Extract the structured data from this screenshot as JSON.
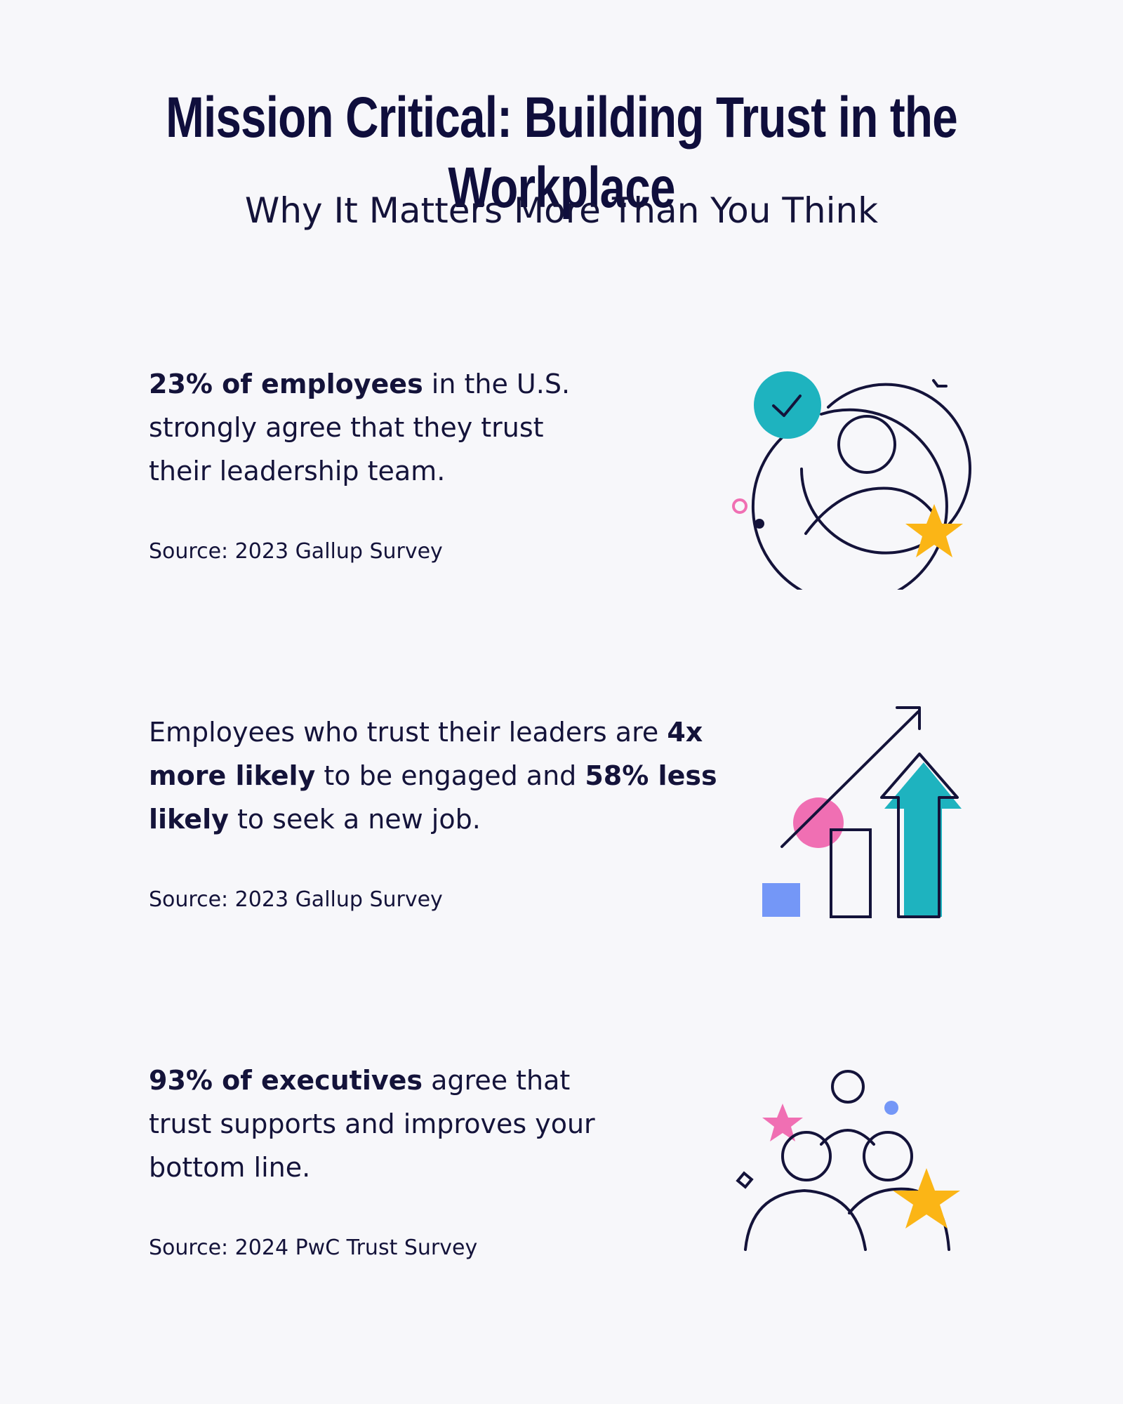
{
  "header": {
    "title": "Mission Critical: Building Trust in the Workplace",
    "subtitle": "Why It Matters More Than You Think"
  },
  "stats": [
    {
      "parts": [
        {
          "text": "23% of employees",
          "bold": true
        },
        {
          "text": " in the U.S. strongly agree that they trust their leadership team.",
          "bold": false
        }
      ],
      "source": "Source: 2023 Gallup Survey",
      "icon": "trusted-person-icon"
    },
    {
      "parts": [
        {
          "text": "Employees who trust their leaders are ",
          "bold": false
        },
        {
          "text": "4x more likely",
          "bold": true
        },
        {
          "text": " to be engaged and ",
          "bold": false
        },
        {
          "text": "58% less likely",
          "bold": true
        },
        {
          "text": " to seek a new job.",
          "bold": false
        }
      ],
      "source": "Source: 2023 Gallup Survey",
      "icon": "growth-chart-icon"
    },
    {
      "parts": [
        {
          "text": "93% of executives",
          "bold": true
        },
        {
          "text": " agree that trust supports and improves your bottom line.",
          "bold": false
        }
      ],
      "source": "Source: 2024 PwC Trust Survey",
      "icon": "team-stars-icon"
    }
  ],
  "colors": {
    "background": "#f7f7fa",
    "ink": "#14133a",
    "teal": "#1eb3bf",
    "pink": "#f06fb3",
    "yellow": "#fbb516",
    "blue": "#7497f7"
  }
}
